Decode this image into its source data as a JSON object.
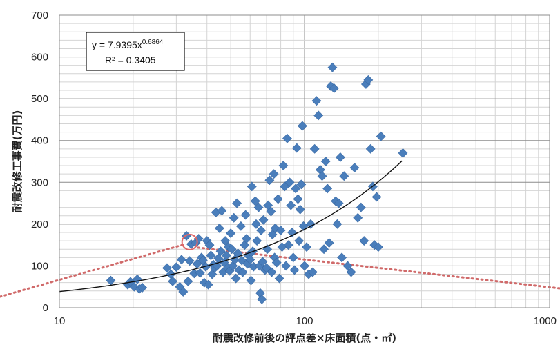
{
  "chart_data": {
    "type": "scatter",
    "title": "",
    "xlabel": "耐震改修前後の評点差×床面積(点・㎡)",
    "ylabel": "耐震改修工事費(万円)",
    "x_scale": "log",
    "xlim": [
      10,
      1000
    ],
    "ylim": [
      0,
      700
    ],
    "x_ticks": [
      "10",
      "100",
      "1000"
    ],
    "y_ticks": [
      "0",
      "100",
      "200",
      "300",
      "400",
      "500",
      "600",
      "700"
    ],
    "grid": true,
    "marker_color": "#4a7ebb",
    "trendline": {
      "type": "power",
      "a": 7.9395,
      "b": 0.6864,
      "x_range": [
        10,
        250
      ],
      "color": "#111111"
    },
    "equation": {
      "line1_prefix": "y = 7.9395x",
      "line1_exp": "0.6864",
      "line2": "R² = 0.3405"
    },
    "highlight": {
      "x": 34,
      "y": 157,
      "color": "#e06666"
    },
    "guide_line_color": "#d06a6a",
    "points": [
      [
        16.2,
        65
      ],
      [
        19.0,
        55
      ],
      [
        19.5,
        62
      ],
      [
        20.2,
        50
      ],
      [
        20.8,
        68
      ],
      [
        21.2,
        45
      ],
      [
        21.8,
        48
      ],
      [
        27.5,
        95
      ],
      [
        28.5,
        80
      ],
      [
        29.0,
        63
      ],
      [
        30.0,
        97
      ],
      [
        31.0,
        50
      ],
      [
        31.5,
        115
      ],
      [
        32.0,
        38
      ],
      [
        33.0,
        172
      ],
      [
        33.5,
        63
      ],
      [
        34.0,
        112
      ],
      [
        34.5,
        152
      ],
      [
        35.5,
        82
      ],
      [
        36.0,
        155
      ],
      [
        36.5,
        105
      ],
      [
        37.0,
        165
      ],
      [
        37.5,
        83
      ],
      [
        38.0,
        120
      ],
      [
        38.5,
        113
      ],
      [
        39.0,
        60
      ],
      [
        39.5,
        98
      ],
      [
        40.0,
        160
      ],
      [
        40.5,
        55
      ],
      [
        41.0,
        150
      ],
      [
        41.5,
        125
      ],
      [
        42.0,
        80
      ],
      [
        42.5,
        103
      ],
      [
        43.0,
        95
      ],
      [
        43.5,
        228
      ],
      [
        44.0,
        100
      ],
      [
        44.5,
        118
      ],
      [
        45.0,
        190
      ],
      [
        45.5,
        135
      ],
      [
        46.0,
        232
      ],
      [
        46.5,
        85
      ],
      [
        47.0,
        108
      ],
      [
        47.5,
        160
      ],
      [
        48.0,
        125
      ],
      [
        48.5,
        95
      ],
      [
        49.0,
        145
      ],
      [
        49.5,
        88
      ],
      [
        50.0,
        178
      ],
      [
        50.5,
        140
      ],
      [
        51.0,
        100
      ],
      [
        51.5,
        215
      ],
      [
        52.0,
        115
      ],
      [
        52.5,
        70
      ],
      [
        53.0,
        250
      ],
      [
        53.5,
        130
      ],
      [
        54.0,
        90
      ],
      [
        55.0,
        195
      ],
      [
        55.5,
        113
      ],
      [
        56.0,
        85
      ],
      [
        57.0,
        150
      ],
      [
        57.5,
        222
      ],
      [
        58.0,
        165
      ],
      [
        58.5,
        105
      ],
      [
        59.0,
        125
      ],
      [
        60.0,
        115
      ],
      [
        60.5,
        65
      ],
      [
        61.0,
        290
      ],
      [
        61.5,
        135
      ],
      [
        62.0,
        98
      ],
      [
        63.0,
        255
      ],
      [
        63.5,
        200
      ],
      [
        64.0,
        160
      ],
      [
        65.0,
        240
      ],
      [
        65.5,
        100
      ],
      [
        66.0,
        35
      ],
      [
        66.5,
        185
      ],
      [
        67.0,
        20
      ],
      [
        67.5,
        110
      ],
      [
        68.0,
        210
      ],
      [
        69.0,
        90
      ],
      [
        70.0,
        95
      ],
      [
        70.5,
        140
      ],
      [
        71.0,
        245
      ],
      [
        72.0,
        305
      ],
      [
        73.0,
        230
      ],
      [
        73.5,
        85
      ],
      [
        74.0,
        175
      ],
      [
        75.0,
        320
      ],
      [
        75.5,
        120
      ],
      [
        76.0,
        190
      ],
      [
        77.0,
        108
      ],
      [
        78.0,
        260
      ],
      [
        79.0,
        70
      ],
      [
        80.0,
        185
      ],
      [
        81.0,
        145
      ],
      [
        82.0,
        340
      ],
      [
        83.0,
        290
      ],
      [
        84.0,
        100
      ],
      [
        85.0,
        405
      ],
      [
        86.0,
        150
      ],
      [
        87.0,
        300
      ],
      [
        88.0,
        245
      ],
      [
        89.0,
        180
      ],
      [
        90.0,
        120
      ],
      [
        91.0,
        90
      ],
      [
        92.0,
        285
      ],
      [
        93.0,
        382
      ],
      [
        94.0,
        260
      ],
      [
        95.0,
        160
      ],
      [
        96.0,
        235
      ],
      [
        97.0,
        295
      ],
      [
        98.0,
        435
      ],
      [
        99.0,
        195
      ],
      [
        100.0,
        100
      ],
      [
        102.0,
        145
      ],
      [
        104.0,
        80
      ],
      [
        106.0,
        200
      ],
      [
        108.0,
        85
      ],
      [
        110.0,
        380
      ],
      [
        112.0,
        495
      ],
      [
        114.0,
        460
      ],
      [
        116.0,
        330
      ],
      [
        118.0,
        315
      ],
      [
        120.0,
        140
      ],
      [
        122.0,
        350
      ],
      [
        124.0,
        285
      ],
      [
        126.0,
        155
      ],
      [
        128.0,
        530
      ],
      [
        130.0,
        575
      ],
      [
        132.0,
        525
      ],
      [
        134.0,
        255
      ],
      [
        136.0,
        200
      ],
      [
        138.0,
        250
      ],
      [
        140.0,
        360
      ],
      [
        142.0,
        120
      ],
      [
        145.0,
        315
      ],
      [
        150.0,
        100
      ],
      [
        155.0,
        85
      ],
      [
        160.0,
        335
      ],
      [
        165.0,
        215
      ],
      [
        170.0,
        240
      ],
      [
        175.0,
        160
      ],
      [
        178.0,
        535
      ],
      [
        182.0,
        545
      ],
      [
        186.0,
        380
      ],
      [
        190.0,
        290
      ],
      [
        193.0,
        150
      ],
      [
        197.0,
        265
      ],
      [
        200.0,
        145
      ],
      [
        205.0,
        410
      ],
      [
        252.0,
        370
      ]
    ]
  }
}
